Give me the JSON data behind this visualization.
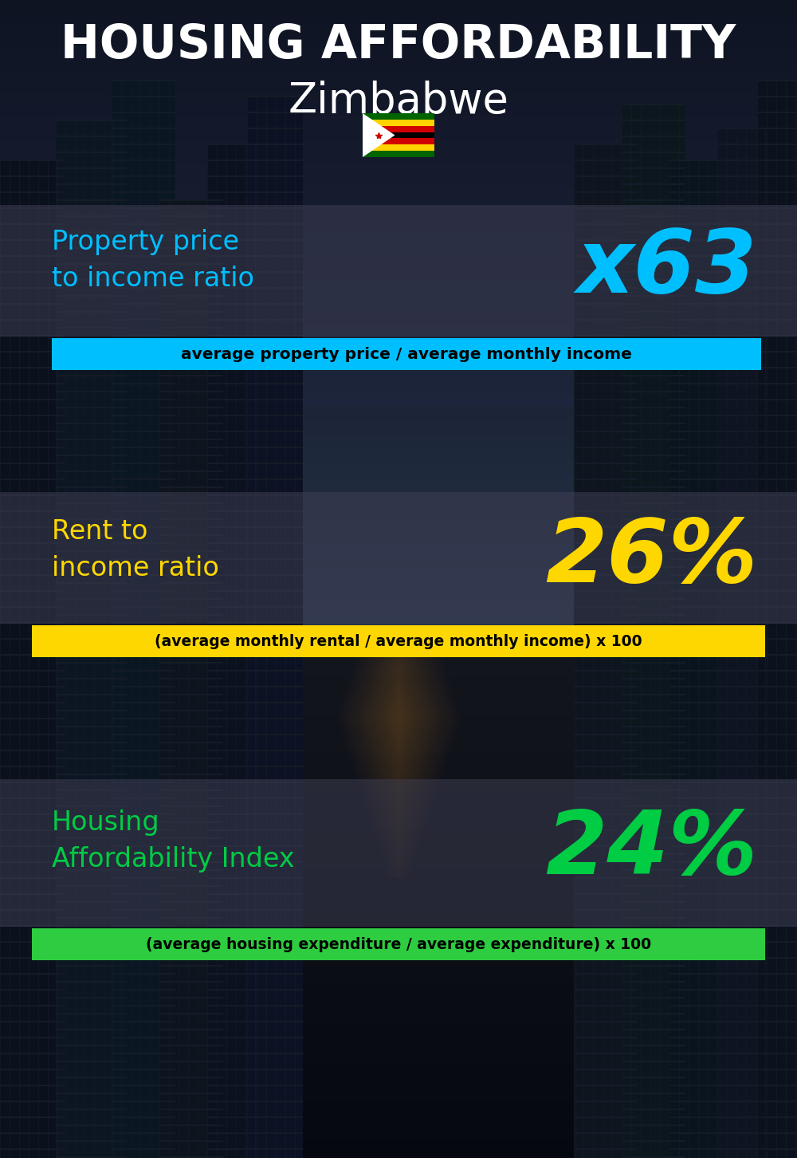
{
  "title_line1": "HOUSING AFFORDABILITY",
  "title_line2": "Zimbabwe",
  "flag_emoji": "🇿🇼",
  "section1_label": "Property price\nto income ratio",
  "section1_value": "x63",
  "section1_sublabel": "average property price / average monthly income",
  "section1_label_color": "#00BFFF",
  "section1_value_color": "#00BFFF",
  "section1_bg_color": "#00BFFF",
  "section1_sub_text_color": "#000000",
  "section2_label": "Rent to\nincome ratio",
  "section2_value": "26%",
  "section2_sublabel": "(average monthly rental / average monthly income) x 100",
  "section2_label_color": "#FFD700",
  "section2_value_color": "#FFD700",
  "section2_bg_color": "#FFD700",
  "section2_sub_text_color": "#000000",
  "section3_label": "Housing\nAffordability Index",
  "section3_value": "24%",
  "section3_sublabel": "(average housing expenditure / average expenditure) x 100",
  "section3_label_color": "#00CC44",
  "section3_value_color": "#00CC44",
  "section3_bg_color": "#2ECC40",
  "section3_sub_text_color": "#000000",
  "background_color": "#0d1b2a",
  "title_color": "#FFFFFF",
  "overlay_color": "#333344",
  "overlay_alpha": 0.45
}
